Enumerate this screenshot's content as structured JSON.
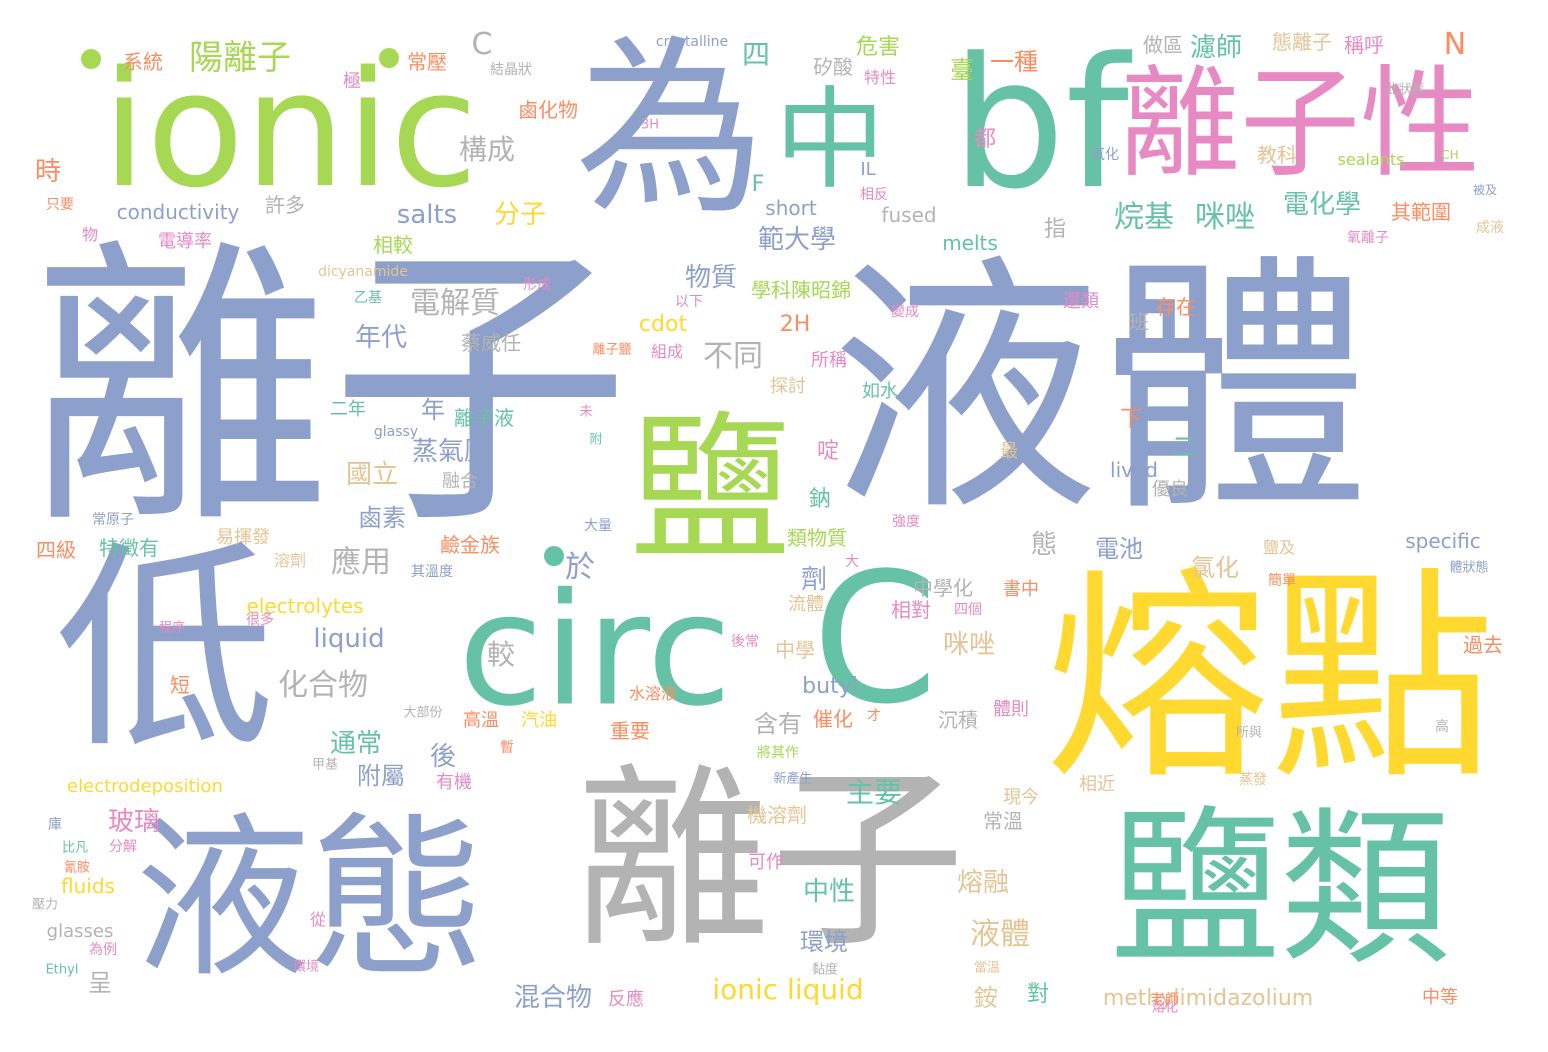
{
  "colors": {
    "blue": "#8da0cb",
    "green": "#66c2a5",
    "lime": "#a6d854",
    "yellow": "#ffd92f",
    "gray": "#b3b3b3",
    "pink": "#e78ac3",
    "orange": "#fc8d62",
    "tan": "#e5c494"
  },
  "words": [
    {
      "text": "離子",
      "color": "blue"
    },
    {
      "text": "液體",
      "color": "blue"
    },
    {
      "text": "ionic",
      "color": "lime"
    },
    {
      "text": "為",
      "color": "blue"
    },
    {
      "text": "中",
      "color": "green"
    },
    {
      "text": "bf",
      "color": "green"
    },
    {
      "text": "離子性",
      "color": "pink"
    },
    {
      "text": "鹽",
      "color": "lime"
    },
    {
      "text": "低",
      "color": "blue"
    },
    {
      "text": "circ",
      "color": "green"
    },
    {
      "text": "C",
      "color": "green"
    },
    {
      "text": "熔點",
      "color": "yellow"
    },
    {
      "text": "液態",
      "color": "blue"
    },
    {
      "text": "離子",
      "color": "gray"
    },
    {
      "text": "鹽類",
      "color": "green"
    },
    {
      "text": "陽離子",
      "color": "lime"
    },
    {
      "text": "C",
      "color": "gray"
    },
    {
      "text": "系統",
      "color": "orange"
    },
    {
      "text": "常壓",
      "color": "orange"
    },
    {
      "text": "極",
      "color": "pink"
    },
    {
      "text": "結晶狀",
      "color": "gray"
    },
    {
      "text": "crystalline",
      "color": "blue"
    },
    {
      "text": "四",
      "color": "green"
    },
    {
      "text": "矽酸",
      "color": "gray"
    },
    {
      "text": "危害",
      "color": "lime"
    },
    {
      "text": "特性",
      "color": "pink"
    },
    {
      "text": "臺",
      "color": "lime"
    },
    {
      "text": "一種",
      "color": "orange"
    },
    {
      "text": "濾師",
      "color": "green"
    },
    {
      "text": "做區",
      "color": "gray"
    },
    {
      "text": "態離子",
      "color": "tan"
    },
    {
      "text": "稱呼",
      "color": "pink"
    },
    {
      "text": "N",
      "color": "orange"
    },
    {
      "text": "此狀態",
      "color": "gray"
    },
    {
      "text": "鹵化物",
      "color": "orange"
    },
    {
      "text": "3H",
      "color": "pink"
    },
    {
      "text": "都",
      "color": "pink"
    },
    {
      "text": "氧化",
      "color": "blue"
    },
    {
      "text": "教科",
      "color": "tan"
    },
    {
      "text": "sealants",
      "color": "lime"
    },
    {
      "text": "CH",
      "color": "lime"
    },
    {
      "text": "構成",
      "color": "gray"
    },
    {
      "text": "時",
      "color": "orange"
    },
    {
      "text": "IL",
      "color": "blue"
    },
    {
      "text": "相反",
      "color": "pink"
    },
    {
      "text": "F",
      "color": "green"
    },
    {
      "text": "烷基",
      "color": "green"
    },
    {
      "text": "咪唑",
      "color": "green"
    },
    {
      "text": "電化學",
      "color": "green"
    },
    {
      "text": "其範圍",
      "color": "orange"
    },
    {
      "text": "被及",
      "color": "blue"
    },
    {
      "text": "成液",
      "color": "tan"
    },
    {
      "text": "只要",
      "color": "orange"
    },
    {
      "text": "conductivity",
      "color": "blue"
    },
    {
      "text": "許多",
      "color": "gray"
    },
    {
      "text": "salts",
      "color": "blue"
    },
    {
      "text": "分子",
      "color": "yellow"
    },
    {
      "text": "short",
      "color": "blue"
    },
    {
      "text": "fused",
      "color": "gray"
    },
    {
      "text": "範大學",
      "color": "blue"
    },
    {
      "text": "指",
      "color": "gray"
    },
    {
      "text": "氧離子",
      "color": "pink"
    },
    {
      "text": "物",
      "color": "pink"
    },
    {
      "text": "電導率",
      "color": "pink"
    },
    {
      "text": "相較",
      "color": "lime"
    },
    {
      "text": "melts",
      "color": "green"
    },
    {
      "text": "dicyanamide",
      "color": "tan"
    },
    {
      "text": "形成",
      "color": "pink"
    },
    {
      "text": "物質",
      "color": "blue"
    },
    {
      "text": "學科陳昭錦",
      "color": "lime"
    },
    {
      "text": "乙基",
      "color": "green"
    },
    {
      "text": "變成",
      "color": "pink"
    },
    {
      "text": "電解質",
      "color": "gray"
    },
    {
      "text": "還類",
      "color": "pink"
    },
    {
      "text": "存在",
      "color": "orange"
    },
    {
      "text": "班",
      "color": "gray"
    },
    {
      "text": "年代",
      "color": "blue"
    },
    {
      "text": "cdot",
      "color": "yellow"
    },
    {
      "text": "2H",
      "color": "orange"
    },
    {
      "text": "以下",
      "color": "pink"
    },
    {
      "text": "蔡威任",
      "color": "gray"
    },
    {
      "text": "離子鹽",
      "color": "orange"
    },
    {
      "text": "組成",
      "color": "pink"
    },
    {
      "text": "不同",
      "color": "gray"
    },
    {
      "text": "所稱",
      "color": "pink"
    },
    {
      "text": "探討",
      "color": "tan"
    },
    {
      "text": "如水",
      "color": "green"
    },
    {
      "text": "二年",
      "color": "green"
    },
    {
      "text": "年",
      "color": "blue"
    },
    {
      "text": "離子液",
      "color": "green"
    },
    {
      "text": "glassy",
      "color": "blue"
    },
    {
      "text": "未",
      "color": "pink"
    },
    {
      "text": "蒸氣壓",
      "color": "blue"
    },
    {
      "text": "附",
      "color": "green"
    },
    {
      "text": "下",
      "color": "orange"
    },
    {
      "text": "二",
      "color": "green"
    },
    {
      "text": "國立",
      "color": "tan"
    },
    {
      "text": "融合",
      "color": "gray"
    },
    {
      "text": "啶",
      "color": "pink"
    },
    {
      "text": "最",
      "color": "tan"
    },
    {
      "text": "lived",
      "color": "blue"
    },
    {
      "text": "優良",
      "color": "gray"
    },
    {
      "text": "鹵素",
      "color": "blue"
    },
    {
      "text": "鈉",
      "color": "green"
    },
    {
      "text": "常原子",
      "color": "blue"
    },
    {
      "text": "大量",
      "color": "blue"
    },
    {
      "text": "類物質",
      "color": "lime"
    },
    {
      "text": "強度",
      "color": "pink"
    },
    {
      "text": "四級",
      "color": "orange"
    },
    {
      "text": "特徵有",
      "color": "green"
    },
    {
      "text": "易揮發",
      "color": "tan"
    },
    {
      "text": "鹼金族",
      "color": "orange"
    },
    {
      "text": "態",
      "color": "gray"
    },
    {
      "text": "電池",
      "color": "blue"
    },
    {
      "text": "應用",
      "color": "gray"
    },
    {
      "text": "於",
      "color": "blue"
    },
    {
      "text": "溶劑",
      "color": "tan"
    },
    {
      "text": "其溫度",
      "color": "blue"
    },
    {
      "text": "劑",
      "color": "blue"
    },
    {
      "text": "大",
      "color": "pink"
    },
    {
      "text": "氯化",
      "color": "tan"
    },
    {
      "text": "鹽及",
      "color": "tan"
    },
    {
      "text": "specific",
      "color": "blue"
    },
    {
      "text": "簡單",
      "color": "orange"
    },
    {
      "text": "體狀態",
      "color": "blue"
    },
    {
      "text": "electrolytes",
      "color": "yellow"
    },
    {
      "text": "中學化",
      "color": "gray"
    },
    {
      "text": "書中",
      "color": "orange"
    },
    {
      "text": "流體",
      "color": "tan"
    },
    {
      "text": "相對",
      "color": "pink"
    },
    {
      "text": "四個",
      "color": "pink"
    },
    {
      "text": "很多",
      "color": "pink"
    },
    {
      "text": "程序",
      "color": "pink"
    },
    {
      "text": "liquid",
      "color": "blue"
    },
    {
      "text": "咪唑",
      "color": "tan"
    },
    {
      "text": "後常",
      "color": "pink"
    },
    {
      "text": "較",
      "color": "gray"
    },
    {
      "text": "中學",
      "color": "tan"
    },
    {
      "text": "過去",
      "color": "orange"
    },
    {
      "text": "短",
      "color": "orange"
    },
    {
      "text": "化合物",
      "color": "gray"
    },
    {
      "text": "butyl",
      "color": "blue"
    },
    {
      "text": "水溶液",
      "color": "orange"
    },
    {
      "text": "高溫",
      "color": "orange"
    },
    {
      "text": "汽油",
      "color": "yellow"
    },
    {
      "text": "催化",
      "color": "orange"
    },
    {
      "text": "才",
      "color": "orange"
    },
    {
      "text": "沉積",
      "color": "gray"
    },
    {
      "text": "體則",
      "color": "pink"
    },
    {
      "text": "所與",
      "color": "gray"
    },
    {
      "text": "高",
      "color": "gray"
    },
    {
      "text": "大部份",
      "color": "gray"
    },
    {
      "text": "通常",
      "color": "green"
    },
    {
      "text": "後",
      "color": "blue"
    },
    {
      "text": "含有",
      "color": "gray"
    },
    {
      "text": "重要",
      "color": "orange"
    },
    {
      "text": "將其作",
      "color": "lime"
    },
    {
      "text": "甲基",
      "color": "gray"
    },
    {
      "text": "暫",
      "color": "orange"
    },
    {
      "text": "electrodeposition",
      "color": "yellow"
    },
    {
      "text": "附屬",
      "color": "blue"
    },
    {
      "text": "有機",
      "color": "pink"
    },
    {
      "text": "新產生",
      "color": "blue"
    },
    {
      "text": "相近",
      "color": "tan"
    },
    {
      "text": "蒸發",
      "color": "tan"
    },
    {
      "text": "玻璃",
      "color": "pink"
    },
    {
      "text": "主要",
      "color": "green"
    },
    {
      "text": "現今",
      "color": "tan"
    },
    {
      "text": "機溶劑",
      "color": "tan"
    },
    {
      "text": "常溫",
      "color": "gray"
    },
    {
      "text": "庫",
      "color": "blue"
    },
    {
      "text": "比凡",
      "color": "green"
    },
    {
      "text": "分解",
      "color": "pink"
    },
    {
      "text": "氰胺",
      "color": "orange"
    },
    {
      "text": "可作",
      "color": "pink"
    },
    {
      "text": "中性",
      "color": "green"
    },
    {
      "text": "熔融",
      "color": "tan"
    },
    {
      "text": "fluids",
      "color": "yellow"
    },
    {
      "text": "液體",
      "color": "tan"
    },
    {
      "text": "壓力",
      "color": "gray"
    },
    {
      "text": "從",
      "color": "pink"
    },
    {
      "text": "glasses",
      "color": "gray"
    },
    {
      "text": "環境",
      "color": "blue"
    },
    {
      "text": "為例",
      "color": "pink"
    },
    {
      "text": "呈",
      "color": "gray"
    },
    {
      "text": "ionic liquid",
      "color": "yellow"
    },
    {
      "text": "銨",
      "color": "tan"
    },
    {
      "text": "對",
      "color": "green"
    },
    {
      "text": "Ethyl",
      "color": "green"
    },
    {
      "text": "環境",
      "color": "pink"
    },
    {
      "text": "混合物",
      "color": "blue"
    },
    {
      "text": "反應",
      "color": "pink"
    },
    {
      "text": "methylimidazolium",
      "color": "tan"
    },
    {
      "text": "老師",
      "color": "orange"
    },
    {
      "text": "當溫",
      "color": "tan"
    },
    {
      "text": "黏度",
      "color": "gray"
    },
    {
      "text": "熔化",
      "color": "pink"
    },
    {
      "text": "中等",
      "color": "orange"
    }
  ]
}
